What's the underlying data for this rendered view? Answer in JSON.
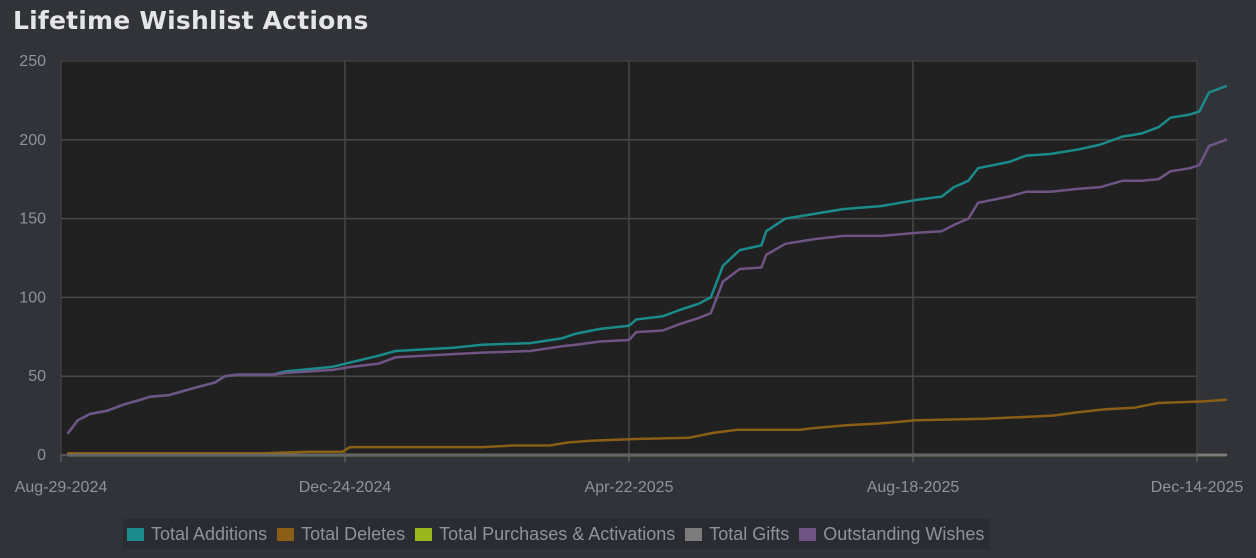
{
  "title": "Lifetime Wishlist Actions",
  "colors": {
    "background": "#323339",
    "plot": "#212121",
    "grid": "#484848",
    "tick_text": "#8e939b"
  },
  "chart_data": {
    "type": "line",
    "title": "Lifetime Wishlist Actions",
    "xlabel": "",
    "ylabel": "",
    "x_type": "date",
    "xlim": [
      "2024-08-29",
      "2025-12-14"
    ],
    "ylim": [
      0,
      250
    ],
    "x_ticks": [
      "Aug-29-2024",
      "Dec-24-2024",
      "Apr-22-2025",
      "Aug-18-2025",
      "Dec-14-2025"
    ],
    "y_ticks": [
      "0",
      "50",
      "100",
      "150",
      "200",
      "250"
    ],
    "grid": true,
    "legend_position": "bottom",
    "series": [
      {
        "name": "Total Additions",
        "color": "#1a8a8a",
        "points": [
          [
            "2024-09-01",
            14
          ],
          [
            "2024-09-05",
            22
          ],
          [
            "2024-09-10",
            26
          ],
          [
            "2024-09-17",
            28
          ],
          [
            "2024-09-24",
            32
          ],
          [
            "2024-10-01",
            35
          ],
          [
            "2024-10-05",
            37
          ],
          [
            "2024-10-13",
            38
          ],
          [
            "2024-10-22",
            42
          ],
          [
            "2024-11-01",
            46
          ],
          [
            "2024-11-05",
            50
          ],
          [
            "2024-11-10",
            51
          ],
          [
            "2024-11-25",
            51
          ],
          [
            "2024-11-30",
            53
          ],
          [
            "2024-12-20",
            56
          ],
          [
            "2024-12-28",
            59
          ],
          [
            "2025-01-08",
            63
          ],
          [
            "2025-01-15",
            66
          ],
          [
            "2025-02-08",
            68
          ],
          [
            "2025-02-20",
            70
          ],
          [
            "2025-03-12",
            71
          ],
          [
            "2025-03-25",
            74
          ],
          [
            "2025-03-31",
            77
          ],
          [
            "2025-04-10",
            80
          ],
          [
            "2025-04-22",
            82
          ],
          [
            "2025-04-25",
            86
          ],
          [
            "2025-05-06",
            88
          ],
          [
            "2025-05-13",
            92
          ],
          [
            "2025-05-21",
            96
          ],
          [
            "2025-05-26",
            100
          ],
          [
            "2025-05-31",
            120
          ],
          [
            "2025-06-07",
            130
          ],
          [
            "2025-06-16",
            133
          ],
          [
            "2025-06-18",
            142
          ],
          [
            "2025-06-26",
            150
          ],
          [
            "2025-07-08",
            153
          ],
          [
            "2025-07-20",
            156
          ],
          [
            "2025-08-05",
            158
          ],
          [
            "2025-08-20",
            162
          ],
          [
            "2025-08-30",
            164
          ],
          [
            "2025-09-04",
            170
          ],
          [
            "2025-09-10",
            174
          ],
          [
            "2025-09-14",
            182
          ],
          [
            "2025-09-27",
            186
          ],
          [
            "2025-10-04",
            190
          ],
          [
            "2025-10-14",
            191
          ],
          [
            "2025-10-26",
            194
          ],
          [
            "2025-11-04",
            197
          ],
          [
            "2025-11-13",
            202
          ],
          [
            "2025-11-21",
            204
          ],
          [
            "2025-11-28",
            208
          ],
          [
            "2025-12-03",
            214
          ],
          [
            "2025-12-11",
            216
          ],
          [
            "2025-12-15",
            218
          ],
          [
            "2025-12-19",
            230
          ],
          [
            "2025-12-26",
            234
          ]
        ]
      },
      {
        "name": "Total Deletes",
        "color": "#8b5e17",
        "points": [
          [
            "2024-09-01",
            1
          ],
          [
            "2024-11-20",
            1
          ],
          [
            "2024-12-10",
            2
          ],
          [
            "2024-12-24",
            2
          ],
          [
            "2024-12-27",
            5
          ],
          [
            "2025-02-20",
            5
          ],
          [
            "2025-03-05",
            6
          ],
          [
            "2025-03-20",
            6
          ],
          [
            "2025-03-28",
            8
          ],
          [
            "2025-04-06",
            9
          ],
          [
            "2025-04-22",
            10
          ],
          [
            "2025-05-17",
            11
          ],
          [
            "2025-05-27",
            14
          ],
          [
            "2025-06-06",
            16
          ],
          [
            "2025-07-02",
            16
          ],
          [
            "2025-07-07",
            17
          ],
          [
            "2025-07-22",
            19
          ],
          [
            "2025-08-04",
            20
          ],
          [
            "2025-08-12",
            21
          ],
          [
            "2025-08-19",
            22
          ],
          [
            "2025-09-17",
            23
          ],
          [
            "2025-10-01",
            24
          ],
          [
            "2025-10-15",
            25
          ],
          [
            "2025-10-25",
            27
          ],
          [
            "2025-11-06",
            29
          ],
          [
            "2025-11-18",
            30
          ],
          [
            "2025-11-28",
            33
          ],
          [
            "2025-12-17",
            34
          ],
          [
            "2025-12-26",
            35
          ]
        ]
      },
      {
        "name": "Total Purchases & Activations",
        "color": "#9ab81e",
        "points": [
          [
            "2024-09-01",
            0
          ],
          [
            "2025-12-26",
            0
          ]
        ]
      },
      {
        "name": "Total Gifts",
        "color": "#7c7c7c",
        "points": [
          [
            "2024-09-01",
            0
          ],
          [
            "2025-12-26",
            0
          ]
        ]
      },
      {
        "name": "Outstanding Wishes",
        "color": "#6f5485",
        "points": [
          [
            "2024-09-01",
            14
          ],
          [
            "2024-09-05",
            22
          ],
          [
            "2024-09-10",
            26
          ],
          [
            "2024-09-17",
            28
          ],
          [
            "2024-09-24",
            32
          ],
          [
            "2024-10-01",
            35
          ],
          [
            "2024-10-05",
            37
          ],
          [
            "2024-10-13",
            38
          ],
          [
            "2024-10-22",
            42
          ],
          [
            "2024-11-01",
            46
          ],
          [
            "2024-11-05",
            50
          ],
          [
            "2024-11-10",
            51
          ],
          [
            "2024-11-25",
            51
          ],
          [
            "2024-11-30",
            52
          ],
          [
            "2024-12-20",
            54
          ],
          [
            "2024-12-28",
            56
          ],
          [
            "2025-01-08",
            58
          ],
          [
            "2025-01-15",
            62
          ],
          [
            "2025-02-08",
            64
          ],
          [
            "2025-02-20",
            65
          ],
          [
            "2025-03-12",
            66
          ],
          [
            "2025-03-25",
            69
          ],
          [
            "2025-03-31",
            70
          ],
          [
            "2025-04-10",
            72
          ],
          [
            "2025-04-22",
            73
          ],
          [
            "2025-04-25",
            78
          ],
          [
            "2025-05-06",
            79
          ],
          [
            "2025-05-13",
            83
          ],
          [
            "2025-05-21",
            87
          ],
          [
            "2025-05-26",
            90
          ],
          [
            "2025-05-31",
            110
          ],
          [
            "2025-06-07",
            118
          ],
          [
            "2025-06-16",
            119
          ],
          [
            "2025-06-18",
            127
          ],
          [
            "2025-06-26",
            134
          ],
          [
            "2025-07-08",
            137
          ],
          [
            "2025-07-20",
            139
          ],
          [
            "2025-08-05",
            139
          ],
          [
            "2025-08-20",
            141
          ],
          [
            "2025-08-30",
            142
          ],
          [
            "2025-09-04",
            146
          ],
          [
            "2025-09-10",
            150
          ],
          [
            "2025-09-14",
            160
          ],
          [
            "2025-09-27",
            164
          ],
          [
            "2025-10-04",
            167
          ],
          [
            "2025-10-14",
            167
          ],
          [
            "2025-10-26",
            169
          ],
          [
            "2025-11-04",
            170
          ],
          [
            "2025-11-13",
            174
          ],
          [
            "2025-11-21",
            174
          ],
          [
            "2025-11-28",
            175
          ],
          [
            "2025-12-03",
            180
          ],
          [
            "2025-12-11",
            182
          ],
          [
            "2025-12-15",
            184
          ],
          [
            "2025-12-19",
            196
          ],
          [
            "2025-12-26",
            200
          ]
        ]
      }
    ]
  }
}
